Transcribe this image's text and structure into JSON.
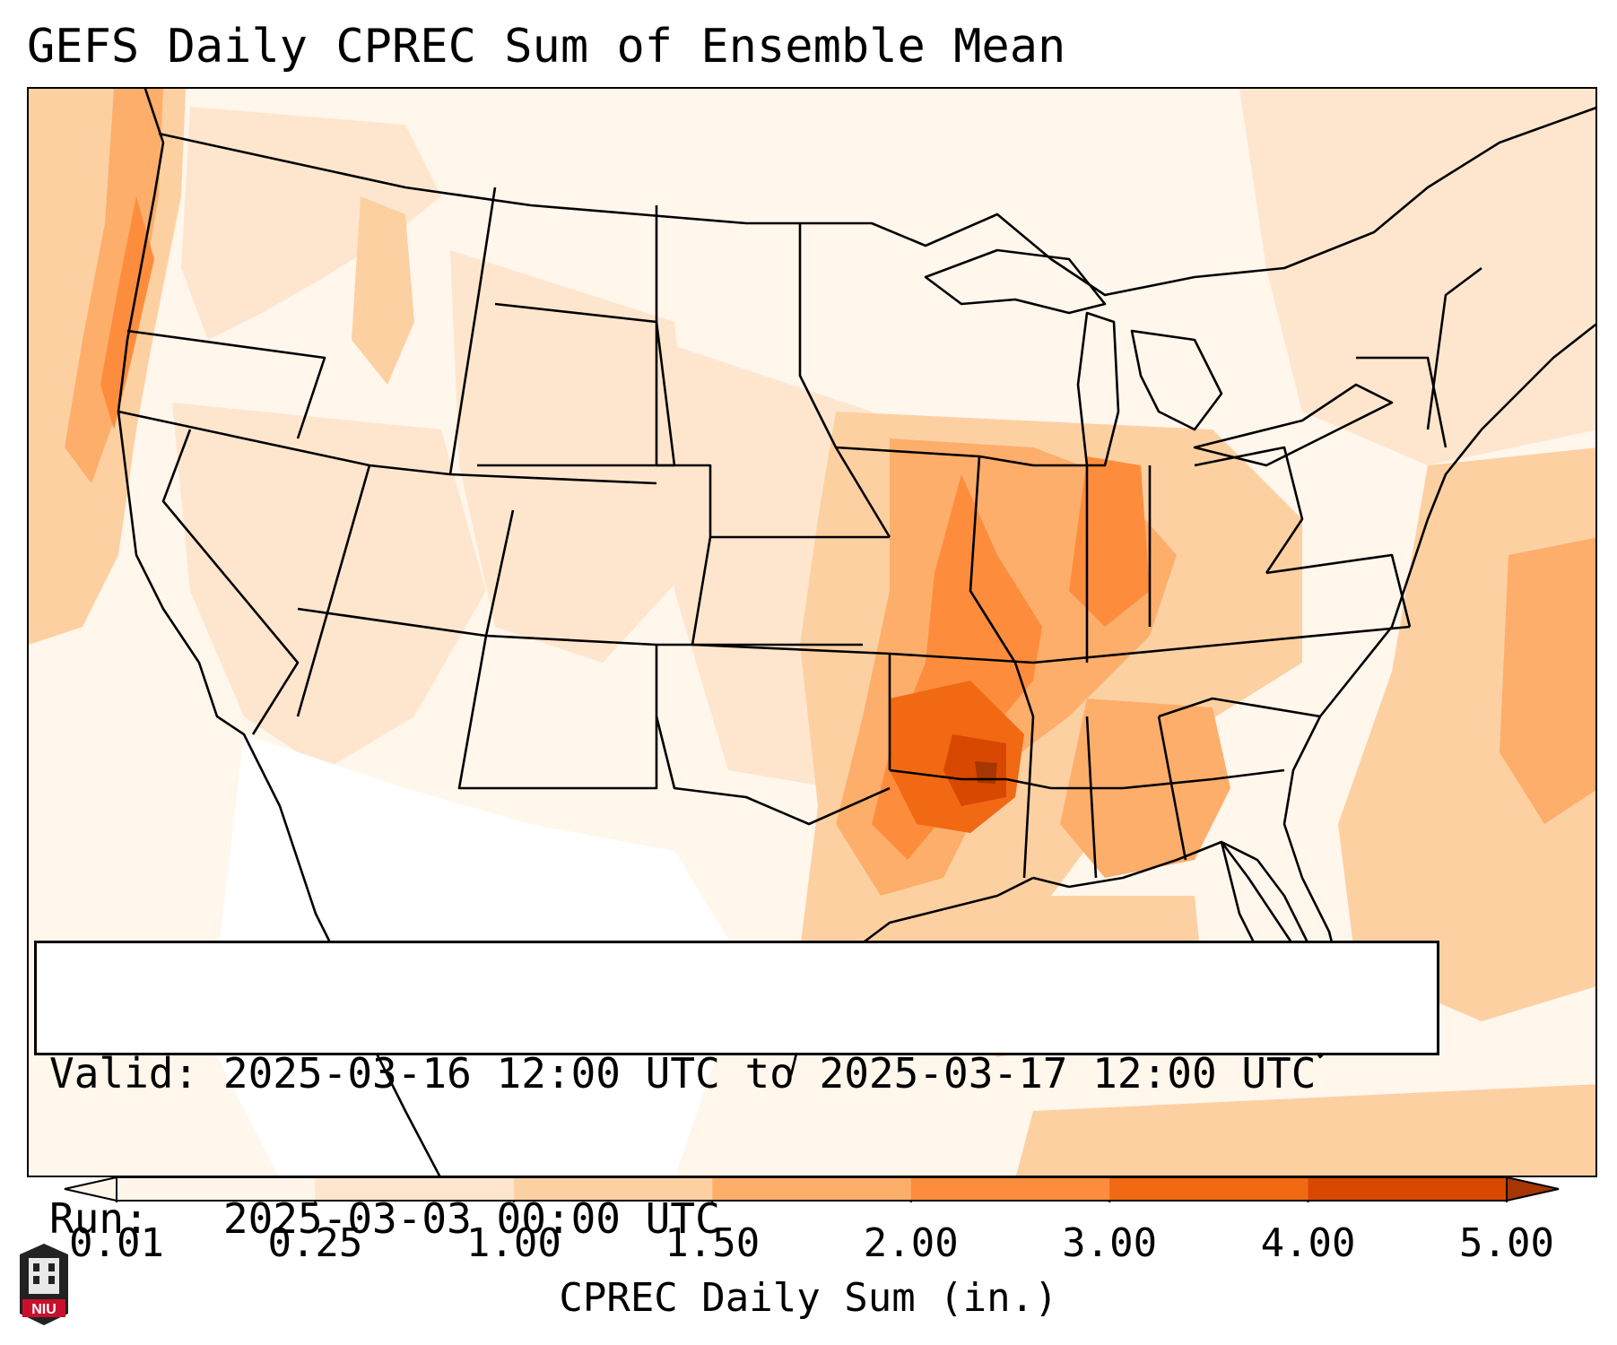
{
  "title": "GEFS Daily CPREC Sum of Ensemble Mean",
  "info": {
    "valid_label": "Valid:",
    "valid_value": "2025-03-16 12:00 UTC to 2025-03-17 12:00 UTC",
    "run_label": "Run:",
    "run_value": "2025-03-03 00:00 UTC"
  },
  "colorbar": {
    "label": "CPREC Daily Sum (in.)",
    "ticks": [
      "0.01",
      "0.25",
      "1.00",
      "1.50",
      "2.00",
      "3.00",
      "4.00",
      "5.00"
    ],
    "colors": [
      "#fff5eb",
      "#fee6ce",
      "#fdd0a2",
      "#fdae6b",
      "#fd8d3c",
      "#f16913",
      "#d94801",
      "#a63603"
    ],
    "extend": "both"
  },
  "logo": {
    "text": "NIU",
    "color": "#c8102e"
  },
  "map": {
    "region": "CONUS",
    "fill_levels": [
      "#fff5eb",
      "#fee6ce",
      "#fdd0a2",
      "#fdae6b",
      "#fd8d3c",
      "#f16913",
      "#d94801",
      "#a63603"
    ]
  }
}
